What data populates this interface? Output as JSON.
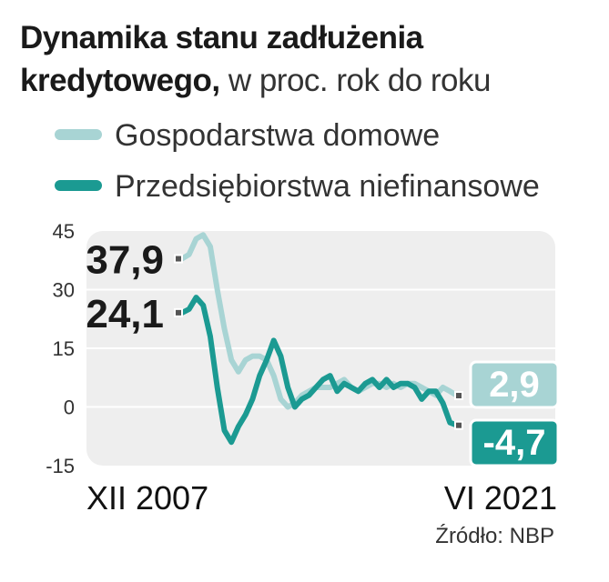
{
  "title": {
    "bold": "Dynamika stanu zadłużenia kredytowego,",
    "bold_line1": "Dynamika stanu zadłużenia",
    "bold_line2": "kredytowego,",
    "rest": "w proc. rok do roku"
  },
  "source": "Źródło: NBP",
  "colors": {
    "households": "#a8d4d4",
    "companies": "#1b9a92",
    "plot_bg": "#eeeeee",
    "label_bg_companies": "#1b9a92"
  },
  "chart_data": {
    "type": "line",
    "title": "Dynamika stanu zadłużenia kredytowego, w proc. rok do roku",
    "ylim": [
      -15,
      45
    ],
    "yticks": [
      "45",
      "30",
      "15",
      "0",
      "-15"
    ],
    "x_start_label": "XII 2007",
    "x_end_label": "VI 2021",
    "grid": true,
    "legend_position": "top",
    "series": [
      {
        "name": "Gospodarstwa domowe",
        "color": "#a8d4d4",
        "start_label": "37,9",
        "end_label": "2,9",
        "values": [
          37.9,
          39,
          43,
          44,
          41,
          30,
          20,
          12,
          9,
          12,
          13,
          13,
          12,
          8,
          2,
          0,
          1,
          3,
          4,
          5,
          5,
          5,
          6,
          7,
          5,
          4,
          5,
          6,
          6,
          5,
          6,
          5,
          6,
          6,
          5,
          4,
          3,
          5,
          4,
          2.9
        ]
      },
      {
        "name": "Przedsiębiorstwa niefinansowe",
        "color": "#1b9a92",
        "start_label": "24,1",
        "end_label": "-4,7",
        "values": [
          24.1,
          25,
          28,
          26,
          18,
          5,
          -6,
          -9,
          -5,
          -2,
          2,
          8,
          12,
          17,
          13,
          5,
          0,
          2,
          3,
          5,
          7,
          8,
          4,
          6,
          5,
          4,
          6,
          7,
          5,
          7,
          5,
          6,
          6,
          5,
          2,
          4,
          4,
          1,
          -4,
          -4.7
        ]
      }
    ]
  }
}
